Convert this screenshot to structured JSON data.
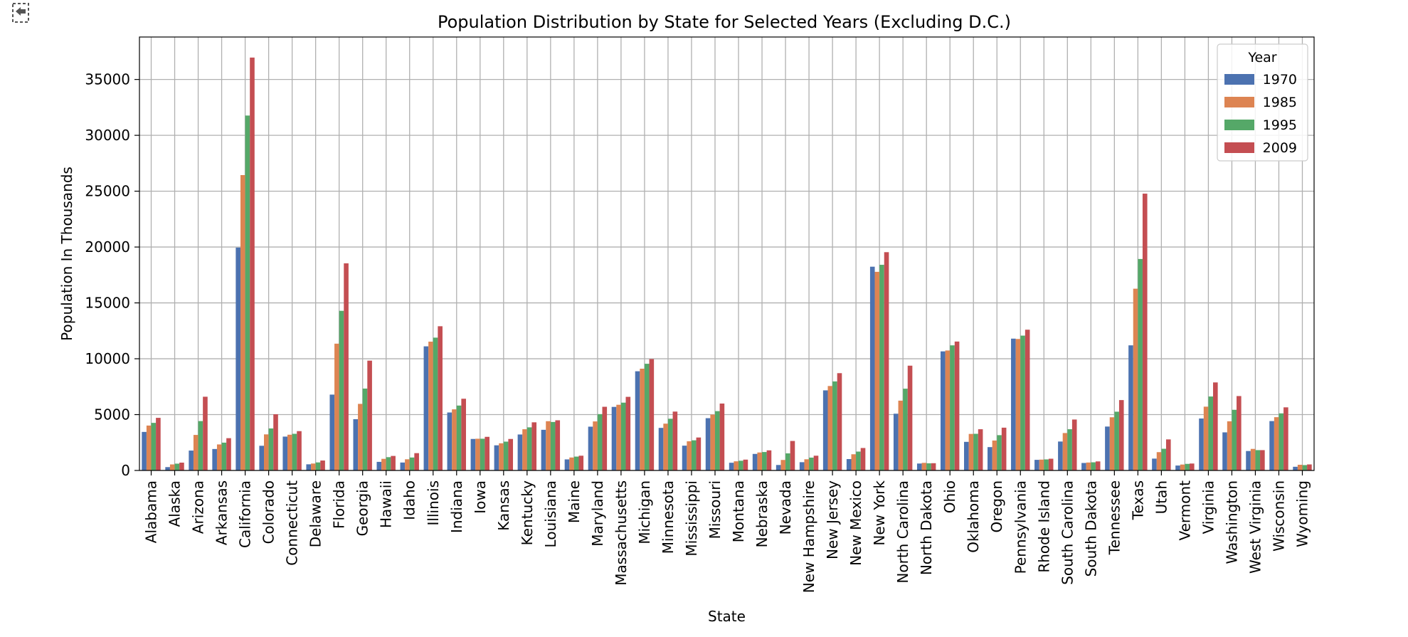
{
  "icons": {
    "cell_output_icon": "output-toggle-icon"
  },
  "colors": {
    "1970": "#4c72b0",
    "1985": "#dd8452",
    "1995": "#55a868",
    "2009": "#c44e52",
    "grid": "#b0b0b0",
    "axis": "#000000"
  },
  "chart_data": {
    "type": "bar",
    "title": "Population Distribution by State for Selected Years (Excluding D.C.)",
    "xlabel": "State",
    "ylabel": "Population In Thousands",
    "ylim": [
      0,
      38800
    ],
    "yticks": [
      0,
      5000,
      10000,
      15000,
      20000,
      25000,
      30000,
      35000
    ],
    "grid": true,
    "legend": {
      "title": "Year",
      "placement": "top-right"
    },
    "categories": [
      "Alabama",
      "Alaska",
      "Arizona",
      "Arkansas",
      "California",
      "Colorado",
      "Connecticut",
      "Delaware",
      "Florida",
      "Georgia",
      "Hawaii",
      "Idaho",
      "Illinois",
      "Indiana",
      "Iowa",
      "Kansas",
      "Kentucky",
      "Louisiana",
      "Maine",
      "Maryland",
      "Massachusetts",
      "Michigan",
      "Minnesota",
      "Mississippi",
      "Missouri",
      "Montana",
      "Nebraska",
      "Nevada",
      "New Hampshire",
      "New Jersey",
      "New Mexico",
      "New York",
      "North Carolina",
      "North Dakota",
      "Ohio",
      "Oklahoma",
      "Oregon",
      "Pennsylvania",
      "Rhode Island",
      "South Carolina",
      "South Dakota",
      "Tennessee",
      "Texas",
      "Utah",
      "Vermont",
      "Virginia",
      "Washington",
      "West Virginia",
      "Wisconsin",
      "Wyoming"
    ],
    "series": [
      {
        "name": "1970",
        "values": [
          3450,
          300,
          1780,
          1920,
          19950,
          2210,
          3030,
          550,
          6790,
          4590,
          770,
          710,
          11110,
          5190,
          2820,
          2250,
          3220,
          3640,
          990,
          3920,
          5690,
          8880,
          3810,
          2220,
          4680,
          690,
          1480,
          490,
          740,
          7170,
          1020,
          18240,
          5080,
          620,
          10660,
          2560,
          2090,
          11800,
          950,
          2590,
          670,
          3930,
          11200,
          1060,
          440,
          4650,
          3410,
          1740,
          4420,
          330
        ]
      },
      {
        "name": "1985",
        "values": [
          4020,
          540,
          3180,
          2330,
          26440,
          3230,
          3200,
          620,
          11350,
          5960,
          1040,
          1000,
          11530,
          5470,
          2840,
          2430,
          3690,
          4410,
          1160,
          4390,
          5880,
          9110,
          4190,
          2610,
          5000,
          820,
          1610,
          940,
          1000,
          7560,
          1450,
          17780,
          6250,
          680,
          10740,
          3270,
          2680,
          11770,
          970,
          3350,
          710,
          4760,
          16270,
          1640,
          530,
          5710,
          4400,
          1930,
          4770,
          510
        ]
      },
      {
        "name": "1995",
        "values": [
          4260,
          610,
          4420,
          2490,
          31770,
          3760,
          3280,
          720,
          14290,
          7330,
          1190,
          1160,
          11890,
          5810,
          2840,
          2580,
          3860,
          4340,
          1240,
          5040,
          6070,
          9550,
          4630,
          2700,
          5310,
          870,
          1650,
          1530,
          1150,
          7970,
          1690,
          18410,
          7320,
          640,
          11200,
          3280,
          3160,
          12070,
          990,
          3690,
          730,
          5260,
          18930,
          1940,
          590,
          6620,
          5430,
          1820,
          5110,
          480
        ]
      },
      {
        "name": "2009",
        "values": [
          4710,
          700,
          6600,
          2890,
          36960,
          5030,
          3520,
          890,
          18540,
          9830,
          1300,
          1550,
          12910,
          6420,
          3010,
          2820,
          4310,
          4490,
          1320,
          5700,
          6590,
          9970,
          5270,
          2950,
          5990,
          970,
          1800,
          2640,
          1320,
          8710,
          2010,
          19540,
          9380,
          650,
          11540,
          3690,
          3830,
          12600,
          1050,
          4560,
          810,
          6300,
          24780,
          2780,
          620,
          7880,
          6660,
          1820,
          5650,
          540
        ]
      }
    ]
  }
}
